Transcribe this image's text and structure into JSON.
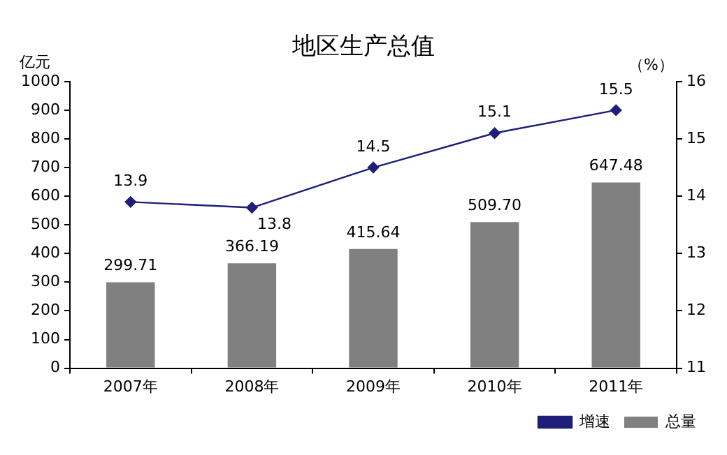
{
  "chart_data": {
    "type": "bar",
    "title": "地区生产总值",
    "ylabel": "亿元",
    "y2label": "（%）",
    "categories": [
      "2007年",
      "2008年",
      "2009年",
      "2010年",
      "2011年"
    ],
    "series": [
      {
        "name": "总量",
        "color": "#808080",
        "values": [
          299.71,
          366.19,
          415.64,
          509.7,
          647.48
        ],
        "value_labels": [
          "299.71",
          "366.19",
          "415.64",
          "509.70",
          "647.48"
        ]
      },
      {
        "name": "增速",
        "type": "line",
        "axis": "y2",
        "color": "#1f1f7a",
        "marker": "diamond",
        "values": [
          13.9,
          13.8,
          14.5,
          15.1,
          15.5
        ],
        "value_labels": [
          "13.9",
          "13.8",
          "14.5",
          "15.1",
          "15.5"
        ]
      }
    ],
    "ylim": [
      0,
      1000
    ],
    "yticks": [
      0,
      100,
      200,
      300,
      400,
      500,
      600,
      700,
      800,
      900,
      1000
    ],
    "y2lim": [
      11,
      16
    ],
    "y2ticks": [
      11,
      12,
      13,
      14,
      15,
      16
    ],
    "grid": false,
    "legend": "bottom right"
  }
}
